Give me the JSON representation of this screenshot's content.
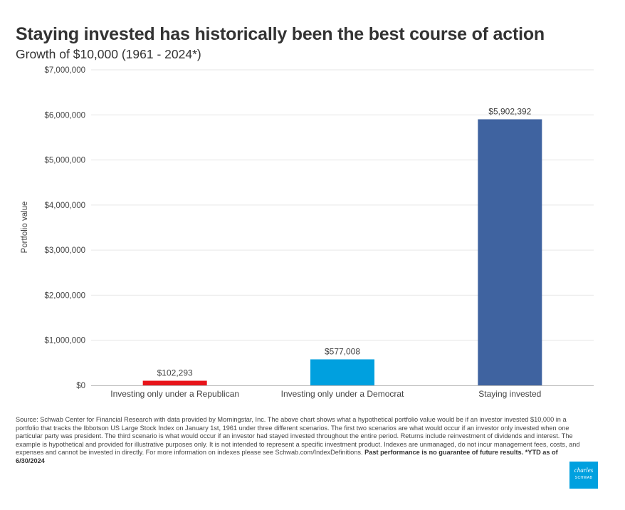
{
  "header": {
    "title": "Staying invested has historically been the best course of action",
    "subtitle": "Growth of $10,000 (1961 - 2024*)"
  },
  "chart_data": {
    "type": "bar",
    "categories": [
      "Investing only under a Republican",
      "Investing only under a Democrat",
      "Staying invested"
    ],
    "values": [
      102293,
      577008,
      5902392
    ],
    "value_labels": [
      "$102,293",
      "$577,008",
      "$5,902,392"
    ],
    "colors": [
      "#e8141a",
      "#00a0df",
      "#3f63a0"
    ],
    "ylabel": "Portfolio value",
    "xlabel": "",
    "ylim": [
      0,
      7000000
    ],
    "yticks": [
      0,
      1000000,
      2000000,
      3000000,
      4000000,
      5000000,
      6000000,
      7000000
    ],
    "ytick_labels": [
      "$0",
      "$1,000,000",
      "$2,000,000",
      "$3,000,000",
      "$4,000,000",
      "$5,000,000",
      "$6,000,000",
      "$7,000,000"
    ],
    "grid": true,
    "legend": "none"
  },
  "footer": {
    "source_text": "Source:  Schwab Center for Financial Research with data provided by Morningstar, Inc. The above chart shows what a hypothetical portfolio value would be if an investor invested $10,000 in a portfolio that tracks the Ibbotson US Large Stock Index on January 1st, 1961 under three different scenarios. The first two scenarios are what would occur if an investor only invested when one particular party was president. The third scenario is what would occur if an investor had stayed invested throughout the entire period. Returns include reinvestment of dividends and interest. The example is hypothetical and provided for illustrative purposes only. It is not intended to represent a specific investment product. Indexes are unmanaged, do not incur management fees, costs, and expenses and cannot be invested in directly. For more information on indexes please see Schwab.com/IndexDefinitions. ",
    "disclaimer_bold": "Past performance is no guarantee of future results. *YTD as of 6/30/2024"
  },
  "logo": {
    "line1": "charles",
    "line2": "SCHWAB"
  }
}
